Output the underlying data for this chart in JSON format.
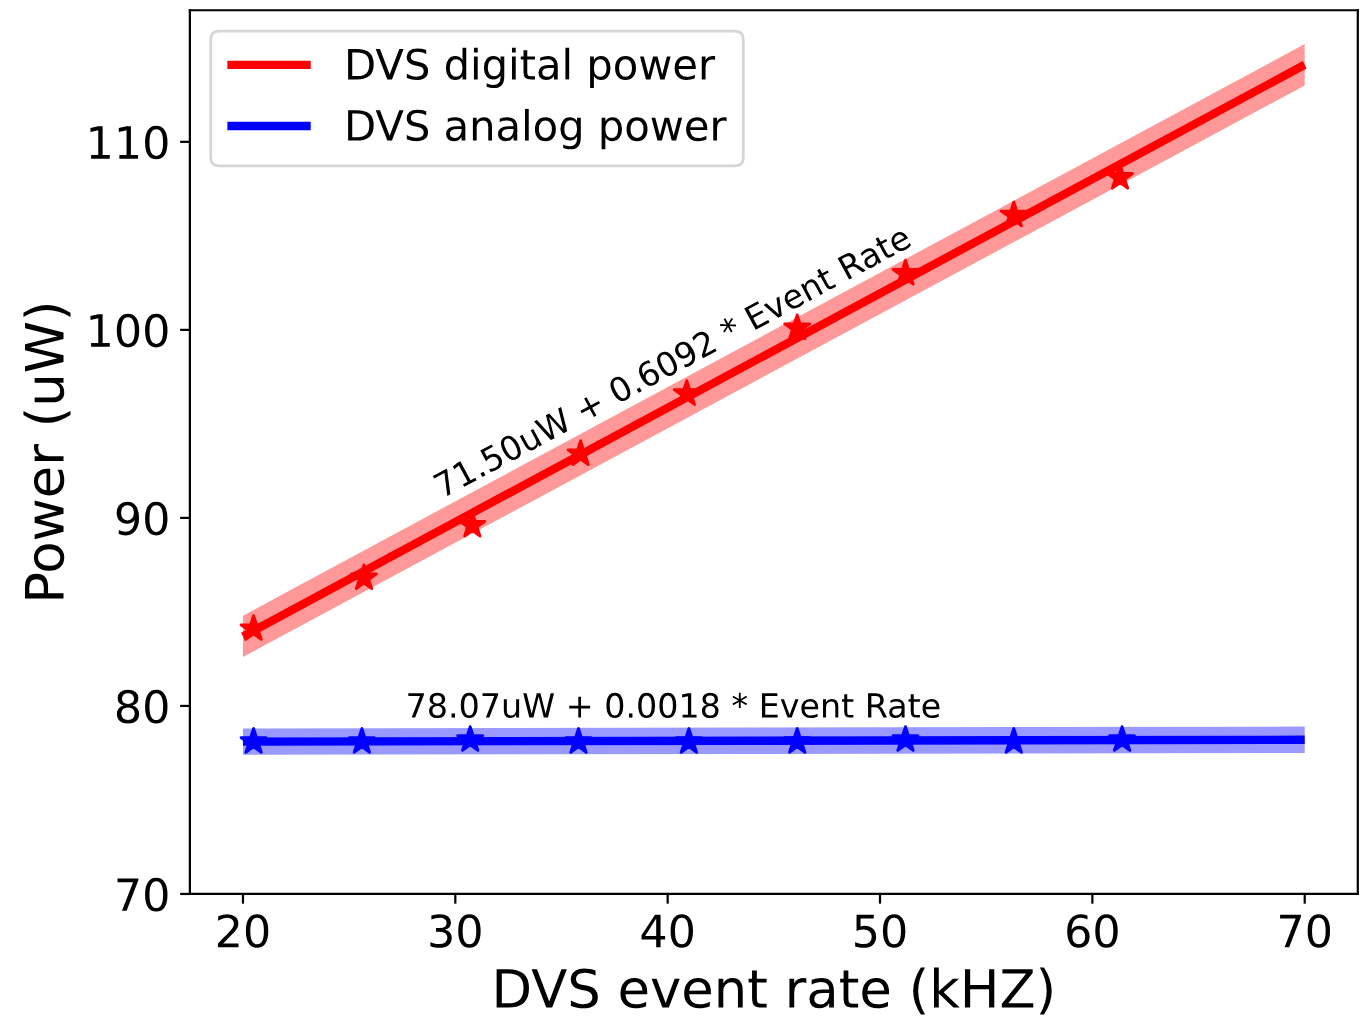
{
  "chart_data": {
    "type": "line",
    "xlabel": "DVS event rate (kHZ)",
    "ylabel": "Power (uW)",
    "xlim": [
      17.5,
      72.5
    ],
    "ylim": [
      70,
      117
    ],
    "xticks": [
      20,
      30,
      40,
      50,
      60,
      70
    ],
    "yticks": [
      70,
      80,
      90,
      100,
      110
    ],
    "grid": false,
    "legend": "top left",
    "series": [
      {
        "name": "DVS digital power",
        "color": "#ff0000",
        "marker": "none",
        "x": [
          20,
          70
        ],
        "values": [
          83.7,
          114.1
        ],
        "lower": [
          82.6,
          113.0
        ],
        "upper": [
          84.8,
          115.2
        ]
      },
      {
        "name": "DVS analog power",
        "color": "#0000ff",
        "marker": "none",
        "x": [
          20,
          70
        ],
        "values": [
          78.1,
          78.2
        ],
        "lower": [
          77.4,
          77.5
        ],
        "upper": [
          78.8,
          78.9
        ]
      },
      {
        "type": "scatter",
        "color": "#ff0000",
        "marker": "star",
        "x": [
          20.5,
          25.7,
          30.8,
          35.9,
          40.9,
          46.1,
          51.2,
          56.3,
          61.3
        ],
        "values": [
          84.1,
          86.8,
          89.6,
          93.4,
          96.6,
          100.1,
          103.0,
          106.1,
          108.1
        ]
      },
      {
        "type": "scatter",
        "color": "#0000ff",
        "marker": "star",
        "x": [
          20.5,
          25.6,
          30.7,
          35.8,
          41.0,
          46.1,
          51.2,
          56.3,
          61.4
        ],
        "values": [
          78.1,
          78.1,
          78.2,
          78.1,
          78.1,
          78.1,
          78.2,
          78.1,
          78.2
        ]
      }
    ],
    "annotations": [
      "71.50uW + 0.6092 * Event Rate",
      "78.07uW + 0.0018 * Event Rate"
    ]
  }
}
